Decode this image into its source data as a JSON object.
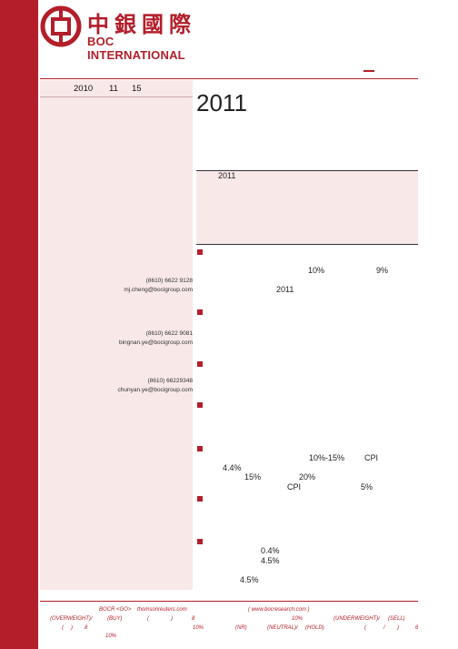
{
  "logo": {
    "cn": "中銀國際",
    "en": "BOC INTERNATIONAL"
  },
  "date": {
    "year": "2010",
    "month": "11",
    "day": "15"
  },
  "contacts": [
    {
      "phone": "(8610) 6622 9128",
      "email": "mj.cheng@bocigroup.com"
    },
    {
      "phone": "(8610) 6622 9081",
      "email": "bingnan.ye@bocigroup.com"
    },
    {
      "phone": "(8610) 66229348",
      "email": "chunyan.ye@bocigroup.com"
    }
  ],
  "main": {
    "title_year": "2011",
    "summary_year": "2011",
    "b1": {
      "p1": "10%",
      "p2": "9%",
      "year": "2011"
    },
    "b6": {
      "range": "10%-15%",
      "cpi": "CPI",
      "p1": "4.4%",
      "p2": "15%",
      "p3": "20%",
      "cpi2": "CPI",
      "p4": "5%"
    },
    "b8": {
      "p1": "0.4%",
      "p2": "4.5%",
      "p3": "4.5%"
    }
  },
  "footer": {
    "l1a": "BOCR <GO>",
    "l1b": "thomsonreuters.com",
    "l1c": "( www.bocresearch.com )",
    "l2a": "(OVERWEIGHT)/",
    "l2b": "(BUY)",
    "l2c": "(",
    "l2d": ")",
    "l2e": "8",
    "l2f": "10%",
    "l2g": "(UNDERWEIGHT)/",
    "l2h": "(SELL)",
    "l3a": "(",
    "l3b": ")",
    "l3c": "8",
    "l3d": "10%",
    "l3e": "(NR)",
    "l3f": "(NEUTRAL)/",
    "l3g": "(HOLD)",
    "l3h": "(",
    "l3i": "/",
    "l3j": ")",
    "l3k": "6",
    "l4a": "10%"
  }
}
